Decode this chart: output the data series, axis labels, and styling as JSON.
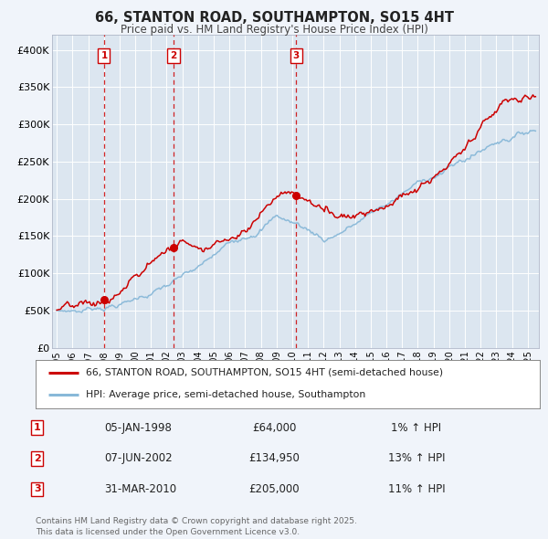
{
  "title": "66, STANTON ROAD, SOUTHAMPTON, SO15 4HT",
  "subtitle": "Price paid vs. HM Land Registry's House Price Index (HPI)",
  "legend_line1": "66, STANTON ROAD, SOUTHAMPTON, SO15 4HT (semi-detached house)",
  "legend_line2": "HPI: Average price, semi-detached house, Southampton",
  "footer": "Contains HM Land Registry data © Crown copyright and database right 2025.\nThis data is licensed under the Open Government Licence v3.0.",
  "background_color": "#f0f4fa",
  "plot_bg_color": "#dce6f0",
  "grid_color": "#ffffff",
  "price_line_color": "#cc0000",
  "hpi_line_color": "#88b8d8",
  "vline_color": "#cc0000",
  "marker_color": "#cc0000",
  "sale_dates": [
    1998.014,
    2002.44,
    2010.247
  ],
  "sale_prices": [
    64000,
    134950,
    205000
  ],
  "sale_labels": [
    "1",
    "2",
    "3"
  ],
  "sale_annotations": [
    {
      "label": "1",
      "date": "05-JAN-1998",
      "price": "£64,000",
      "pct": "1% ↑ HPI"
    },
    {
      "label": "2",
      "date": "07-JUN-2002",
      "price": "£134,950",
      "pct": "13% ↑ HPI"
    },
    {
      "label": "3",
      "date": "31-MAR-2010",
      "price": "£205,000",
      "pct": "11% ↑ HPI"
    }
  ],
  "ylim": [
    0,
    420000
  ],
  "yticks": [
    0,
    50000,
    100000,
    150000,
    200000,
    250000,
    300000,
    350000,
    400000
  ],
  "ytick_labels": [
    "£0",
    "£50K",
    "£100K",
    "£150K",
    "£200K",
    "£250K",
    "£300K",
    "£350K",
    "£400K"
  ],
  "xlim_start": 1994.7,
  "xlim_end": 2025.7,
  "xticks": [
    1995,
    1996,
    1997,
    1998,
    1999,
    2000,
    2001,
    2002,
    2003,
    2004,
    2005,
    2006,
    2007,
    2008,
    2009,
    2010,
    2011,
    2012,
    2013,
    2014,
    2015,
    2016,
    2017,
    2018,
    2019,
    2020,
    2021,
    2022,
    2023,
    2024,
    2025
  ]
}
